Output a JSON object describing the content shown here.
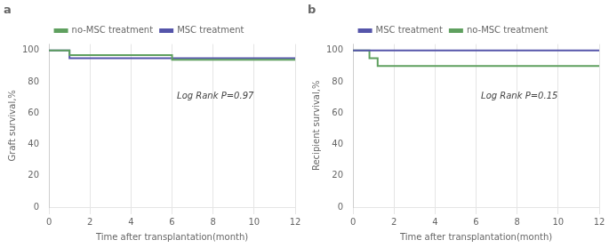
{
  "chart_data": [
    {
      "type": "step",
      "title": "a",
      "xlabel": "Time after transplantation(month)",
      "ylabel": "Graft survival,%",
      "xlim": [
        0,
        12
      ],
      "ylim": [
        0,
        104
      ],
      "xticks": [
        0,
        2,
        4,
        6,
        8,
        10,
        12
      ],
      "yticks": [
        0,
        20,
        40,
        60,
        80,
        100
      ],
      "grid": "x",
      "legend": "top",
      "annotations": [
        "Log Rank P=0.97"
      ],
      "series": [
        {
          "name": "no-MSC treatment",
          "color": "#5fa05f",
          "x": [
            0,
            1,
            6,
            12
          ],
          "values": [
            100,
            97,
            94,
            94
          ]
        },
        {
          "name": "MSC treatment",
          "color": "#5555aa",
          "x": [
            0,
            1,
            12
          ],
          "values": [
            100,
            95,
            95
          ]
        }
      ]
    },
    {
      "type": "step",
      "title": "b",
      "xlabel": "Time after transplantation(month)",
      "ylabel": "Recipient survival,%",
      "xlim": [
        0,
        12
      ],
      "ylim": [
        0,
        104
      ],
      "xticks": [
        0,
        2,
        4,
        6,
        8,
        10,
        12
      ],
      "yticks": [
        0,
        20,
        40,
        60,
        80,
        100
      ],
      "grid": "x",
      "legend": "top",
      "annotations": [
        "Log Rank P=0.15"
      ],
      "series": [
        {
          "name": "MSC treatment",
          "color": "#5555aa",
          "x": [
            0,
            12
          ],
          "values": [
            100,
            100
          ]
        },
        {
          "name": "no-MSC treatment",
          "color": "#5fa05f",
          "x": [
            0,
            0.8,
            1.2,
            12
          ],
          "values": [
            100,
            95,
            90,
            90
          ]
        }
      ]
    }
  ]
}
